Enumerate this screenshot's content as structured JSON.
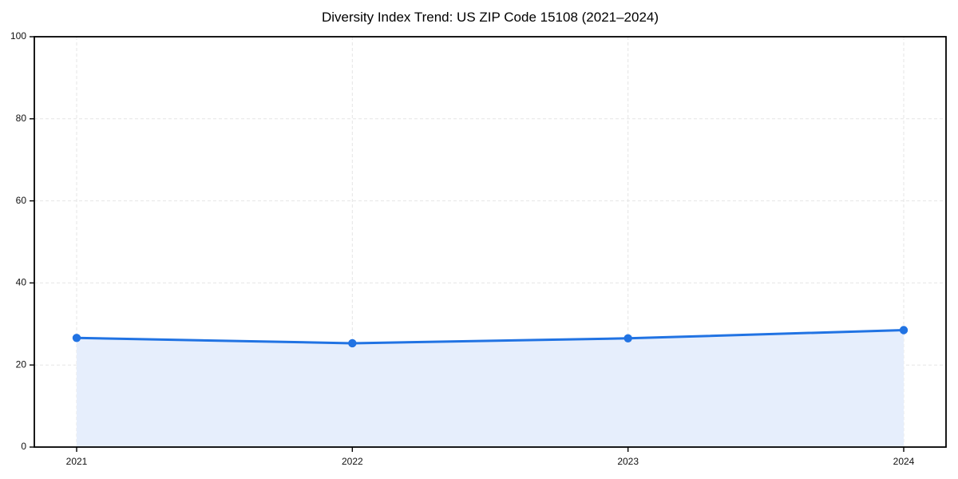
{
  "figure": {
    "title": "Diversity Index Trend: US ZIP Code 15108 (2021–2024)"
  },
  "chart_data": {
    "type": "area",
    "title": "Diversity Index Trend: US ZIP Code 15108 (2021–2024)",
    "categories": [
      "2021",
      "2022",
      "2023",
      "2024"
    ],
    "series": [
      {
        "name": "Diversity Index",
        "values": [
          26.6,
          25.3,
          26.5,
          28.5
        ]
      }
    ],
    "xlabel": "",
    "ylabel": "",
    "ylim": [
      0,
      100
    ],
    "yticks": [
      0,
      20,
      40,
      60,
      80,
      100
    ],
    "grid": true,
    "grid_style": "dashed",
    "legend_position": "none",
    "marker": "circle"
  },
  "colors": {
    "line": "#2173e3",
    "marker": "#2173e3",
    "area_fill": "#e6eefc",
    "grid": "#e5e5e5",
    "spine": "#000000",
    "tick_label": "#111111",
    "background": "#ffffff"
  }
}
